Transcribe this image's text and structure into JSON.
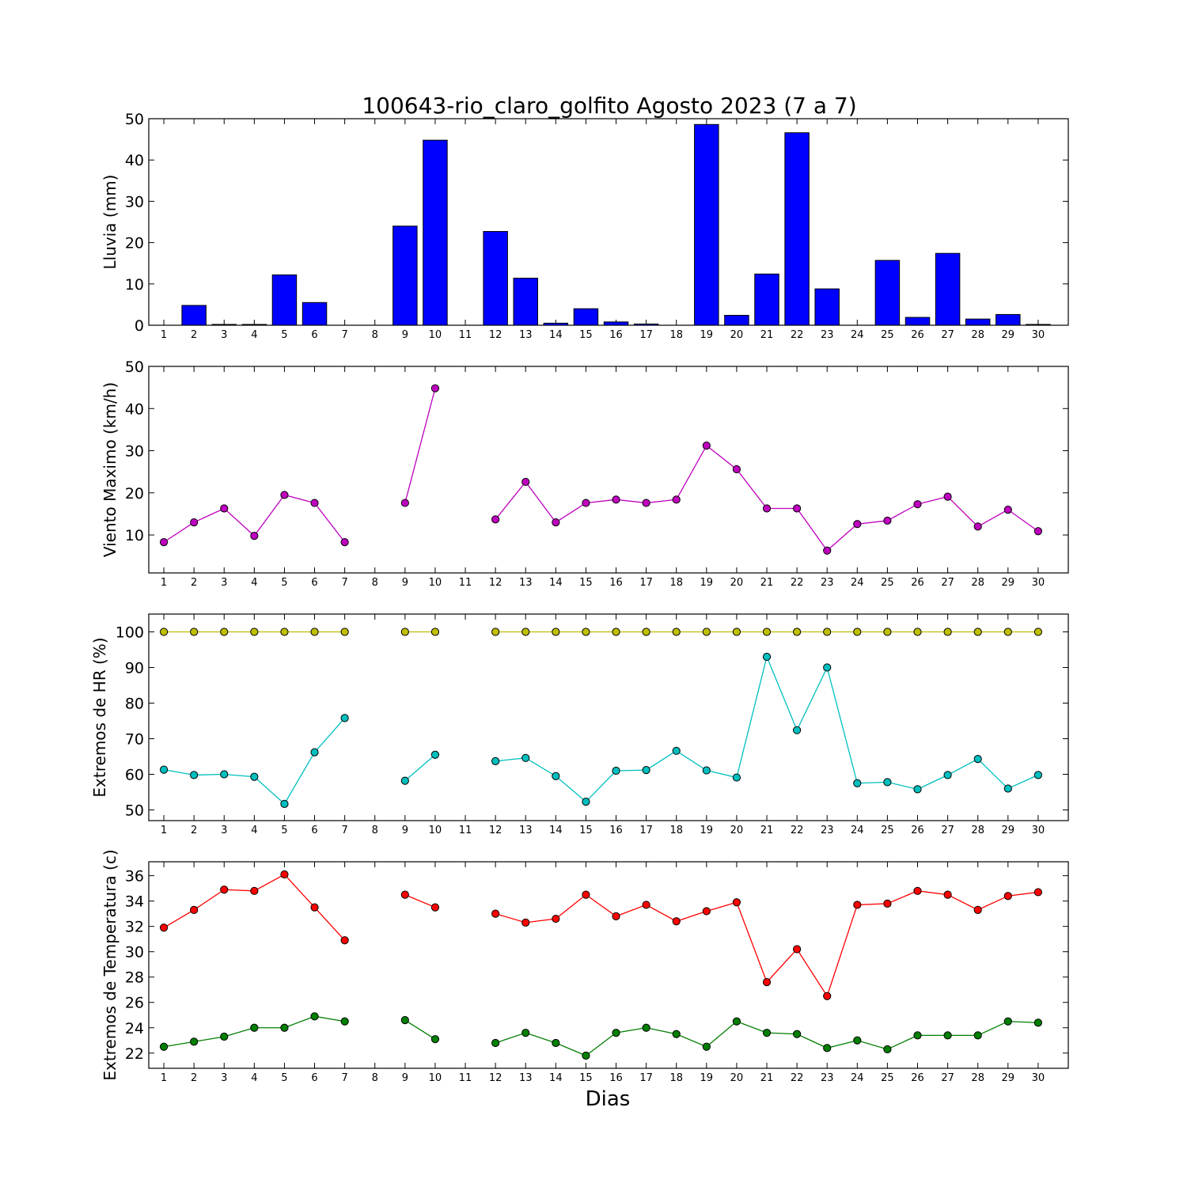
{
  "figure": {
    "title": "100643-rio_claro_golfito Agosto 2023  (7 a 7)",
    "xlabel": "Dias"
  },
  "chart_data": [
    {
      "type": "bar",
      "ylabel": "Lluvia (mm)",
      "ylim": [
        0,
        50
      ],
      "yticks": [
        0,
        10,
        20,
        30,
        40,
        50
      ],
      "categories": [
        "1",
        "2",
        "3",
        "4",
        "5",
        "6",
        "7",
        "8",
        "9",
        "10",
        "11",
        "12",
        "13",
        "14",
        "15",
        "16",
        "17",
        "18",
        "19",
        "20",
        "21",
        "22",
        "23",
        "24",
        "25",
        "26",
        "27",
        "28",
        "29",
        "30"
      ],
      "series": [
        {
          "color": "#0000ff",
          "values": [
            0,
            4.8,
            0.2,
            0.2,
            12.2,
            5.5,
            0,
            0,
            24.0,
            44.8,
            0,
            22.7,
            11.4,
            0.5,
            4.0,
            0.8,
            0.3,
            0,
            48.6,
            2.4,
            12.4,
            46.6,
            8.8,
            0,
            15.7,
            1.9,
            17.4,
            1.5,
            2.6,
            0.2
          ]
        }
      ],
      "grid": false
    },
    {
      "type": "line",
      "ylabel": "Viento Maximo (km/h)",
      "ylim": [
        1,
        50
      ],
      "yticks": [
        10,
        20,
        30,
        40,
        50
      ],
      "x": [
        1,
        2,
        3,
        4,
        5,
        6,
        7,
        8,
        9,
        10,
        11,
        12,
        13,
        14,
        15,
        16,
        17,
        18,
        19,
        20,
        21,
        22,
        23,
        24,
        25,
        26,
        27,
        28,
        29,
        30
      ],
      "series": [
        {
          "color": "#bf00bf",
          "values": [
            8.3,
            13.0,
            16.3,
            9.8,
            19.5,
            17.6,
            8.3,
            null,
            17.6,
            44.8,
            null,
            13.7,
            22.6,
            13.0,
            17.6,
            18.4,
            17.6,
            18.4,
            31.2,
            25.6,
            16.3,
            16.3,
            6.3,
            12.6,
            13.4,
            17.3,
            19.1,
            12.0,
            16.0,
            10.9
          ]
        }
      ],
      "grid": false
    },
    {
      "type": "line",
      "ylabel": "Extremos de HR (%)",
      "ylim": [
        47,
        105
      ],
      "yticks": [
        50,
        60,
        70,
        80,
        90,
        100
      ],
      "x": [
        1,
        2,
        3,
        4,
        5,
        6,
        7,
        8,
        9,
        10,
        11,
        12,
        13,
        14,
        15,
        16,
        17,
        18,
        19,
        20,
        21,
        22,
        23,
        24,
        25,
        26,
        27,
        28,
        29,
        30
      ],
      "series": [
        {
          "color": "#bfbf00",
          "values": [
            100,
            100,
            100,
            100,
            100,
            100,
            100,
            null,
            100,
            100,
            null,
            100,
            100,
            100,
            100,
            100,
            100,
            100,
            100,
            100,
            100,
            100,
            100,
            100,
            100,
            100,
            100,
            100,
            100,
            100
          ]
        },
        {
          "color": "#00bfbf",
          "values": [
            61.3,
            59.8,
            60.0,
            59.3,
            51.7,
            66.2,
            75.8,
            null,
            58.2,
            65.5,
            null,
            63.7,
            64.6,
            59.5,
            52.3,
            61.0,
            61.2,
            66.6,
            61.1,
            59.1,
            93.0,
            72.4,
            90.0,
            57.5,
            57.8,
            55.8,
            59.8,
            64.3,
            56.0,
            59.8
          ]
        }
      ],
      "grid": false
    },
    {
      "type": "line",
      "ylabel": "Extremos de Temperatura (c)",
      "ylim": [
        20.8,
        37.1
      ],
      "yticks": [
        22,
        24,
        26,
        28,
        30,
        32,
        34,
        36
      ],
      "x": [
        1,
        2,
        3,
        4,
        5,
        6,
        7,
        8,
        9,
        10,
        11,
        12,
        13,
        14,
        15,
        16,
        17,
        18,
        19,
        20,
        21,
        22,
        23,
        24,
        25,
        26,
        27,
        28,
        29,
        30
      ],
      "series": [
        {
          "color": "#ff0000",
          "values": [
            31.9,
            33.3,
            34.9,
            34.8,
            36.1,
            33.5,
            30.9,
            null,
            34.5,
            33.5,
            null,
            33.0,
            32.3,
            32.6,
            34.5,
            32.8,
            33.7,
            32.4,
            33.2,
            33.9,
            27.6,
            30.2,
            26.5,
            33.7,
            33.8,
            34.8,
            34.5,
            33.3,
            34.4,
            34.7
          ]
        },
        {
          "color": "#007f00",
          "values": [
            22.5,
            22.9,
            23.3,
            24.0,
            24.0,
            24.9,
            24.5,
            null,
            24.6,
            23.1,
            null,
            22.8,
            23.6,
            22.8,
            21.8,
            23.6,
            24.0,
            23.5,
            22.5,
            24.5,
            23.6,
            23.5,
            22.4,
            23.0,
            22.3,
            23.4,
            23.4,
            23.4,
            24.5,
            24.4
          ]
        }
      ],
      "grid": false
    }
  ]
}
